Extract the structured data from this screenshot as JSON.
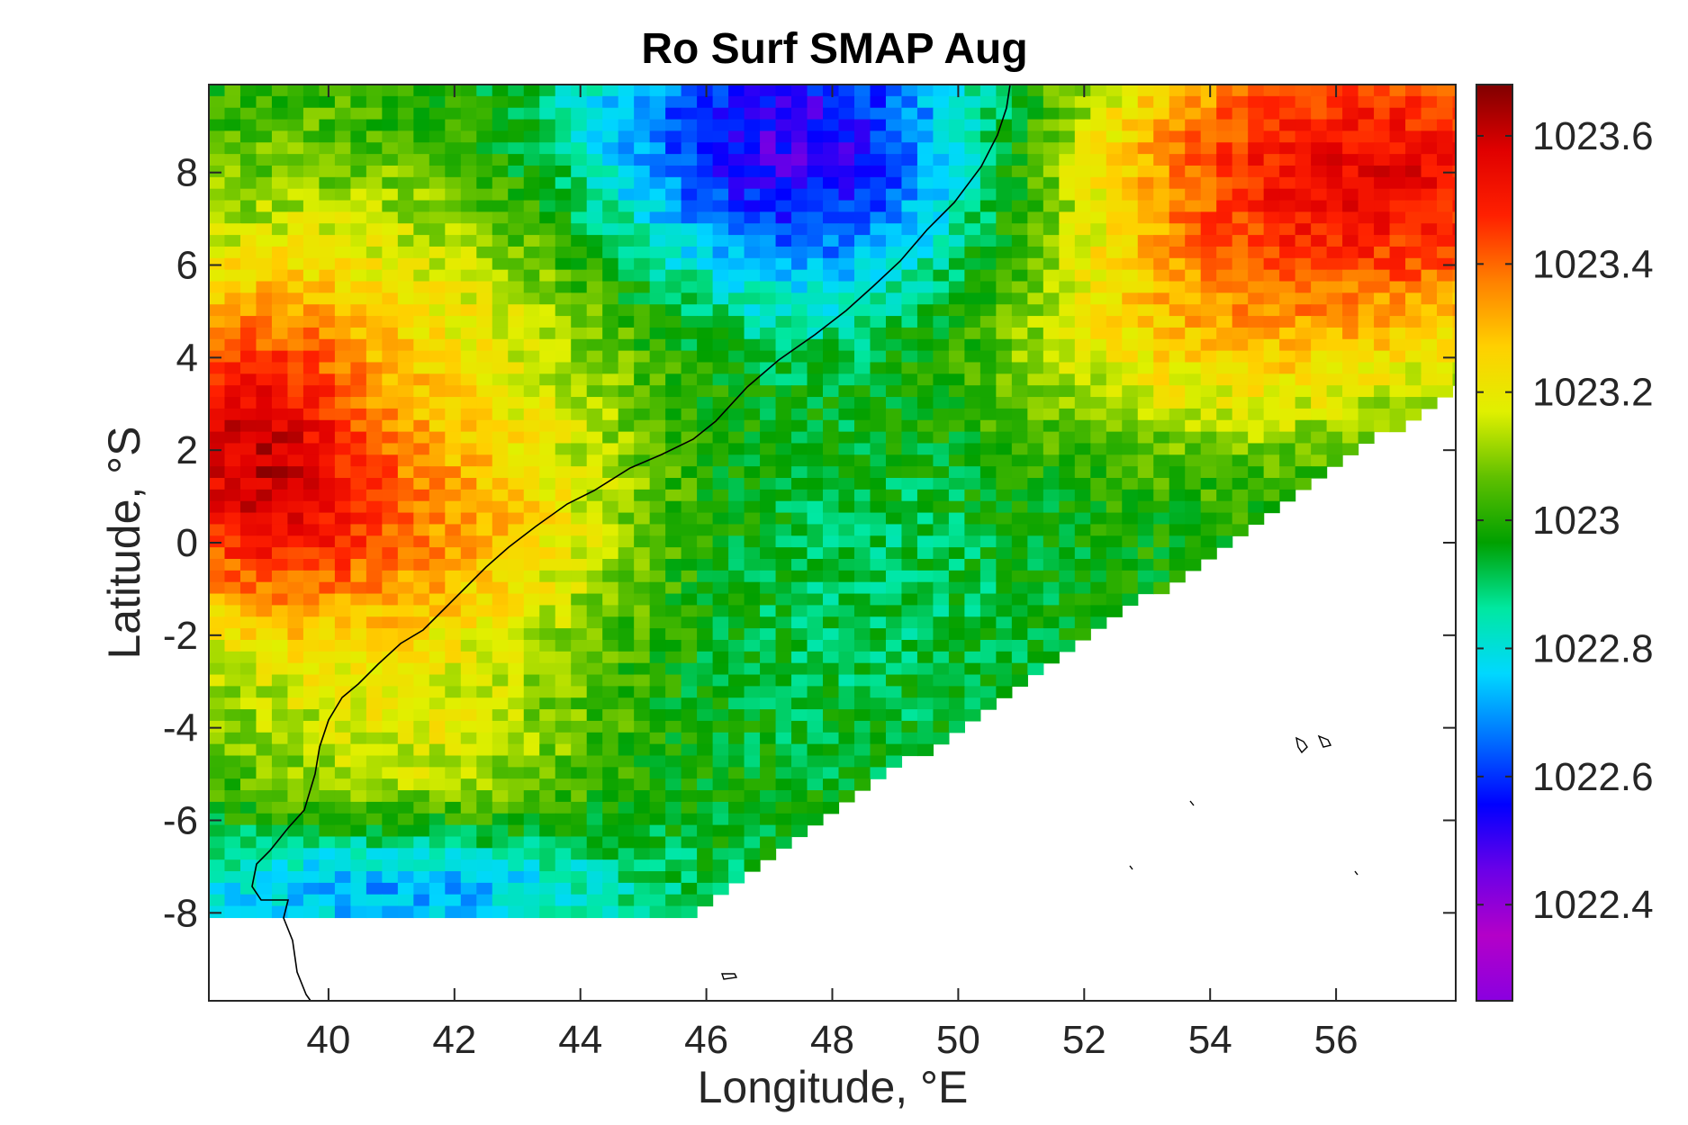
{
  "chart_data": {
    "type": "heatmap",
    "title": "Ro Surf SMAP Aug",
    "xlabel": "Longitude, °E",
    "ylabel": "Latitude, °S",
    "xlim": [
      38.1,
      57.9
    ],
    "ylim": [
      -9.9,
      9.9
    ],
    "xticks": [
      40,
      42,
      44,
      46,
      48,
      50,
      52,
      54,
      56
    ],
    "xtick_labels": [
      "40",
      "42",
      "44",
      "46",
      "48",
      "50",
      "52",
      "54",
      "56"
    ],
    "yticks": [
      8,
      6,
      4,
      2,
      0,
      -2,
      -4,
      -6,
      -8
    ],
    "ytick_labels": [
      "8",
      "6",
      "4",
      "2",
      "0",
      "-2",
      "-4",
      "-6",
      "-8"
    ],
    "colorbar": {
      "limits": [
        1022.25,
        1023.68
      ],
      "ticks": [
        1023.6,
        1023.4,
        1023.2,
        1023,
        1022.8,
        1022.6,
        1022.4
      ],
      "tick_labels": [
        "1023.6",
        "1023.4",
        "1023.2",
        "1023",
        "1022.8",
        "1022.6",
        "1022.4"
      ],
      "colormap": [
        "#8a00e0",
        "#b400c8",
        "#6a00e8",
        "#0000ff",
        "#0070ff",
        "#00d8ff",
        "#00e8a0",
        "#00a000",
        "#60c000",
        "#e0f000",
        "#ffd000",
        "#ff8000",
        "#ff2000",
        "#e00000",
        "#800000"
      ]
    },
    "grid": false,
    "data_note_regions": [
      {
        "region": "northwest",
        "level": "green-cyan"
      },
      {
        "region": "north-central",
        "level": "purple (low, ~1022.5)"
      },
      {
        "region": "northeast",
        "level": "red (high, ~1023.55)"
      },
      {
        "region": "west near 38-40E, 0-4N",
        "level": "red (~1023.5)"
      },
      {
        "region": "south near -7 to -8",
        "level": "blue-purple (~1022.6)"
      },
      {
        "region": "central",
        "level": "cyan-green (~1022.95)"
      }
    ]
  }
}
